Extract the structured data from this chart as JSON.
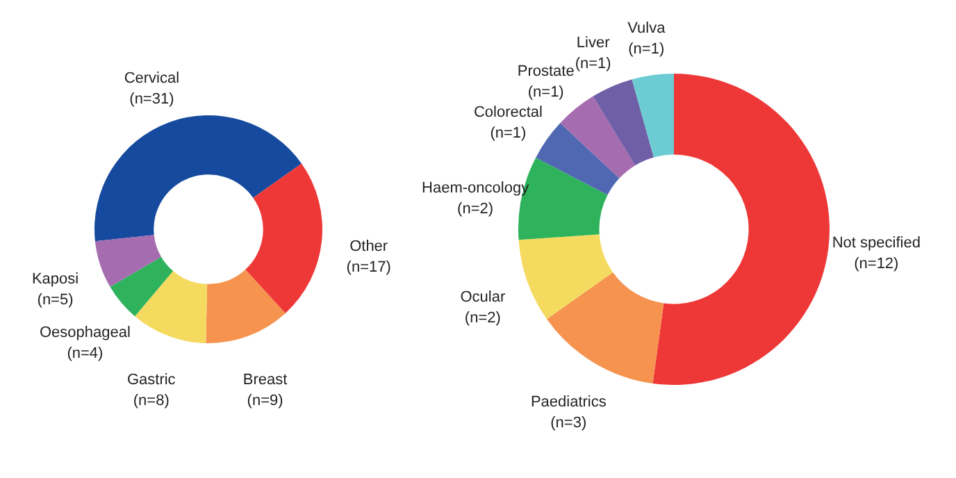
{
  "chart_data": [
    {
      "type": "donut",
      "categories": [
        "Cervical",
        "Other",
        "Breast",
        "Gastric",
        "Oesophageal",
        "Kaposi"
      ],
      "values": [
        31,
        17,
        9,
        8,
        4,
        5
      ],
      "colors": [
        "#164a9e",
        "#ee3838",
        "#f5934f",
        "#f5da60",
        "#2eb35c",
        "#a66cb0"
      ],
      "value_labels": [
        "(n=31)",
        "(n=17)",
        "(n=9)",
        "(n=8)",
        "(n=4)",
        "(n=5)"
      ]
    },
    {
      "type": "donut",
      "categories": [
        "Not specified",
        "Paediatrics",
        "Ocular",
        "Haem-oncology",
        "Colorectal",
        "Prostate",
        "Liver",
        "Vulva"
      ],
      "values": [
        12,
        3,
        2,
        2,
        1,
        1,
        1,
        1
      ],
      "colors": [
        "#ee3838",
        "#f5934f",
        "#f5da60",
        "#2eb35c",
        "#5068b2",
        "#a66cb0",
        "#6f5fa6",
        "#6ccbd3"
      ],
      "value_labels": [
        "(n=12)",
        "(n=3)",
        "(n=2)",
        "(n=2)",
        "(n=1)",
        "(n=1)",
        "(n=1)",
        "(n=1)"
      ]
    }
  ]
}
